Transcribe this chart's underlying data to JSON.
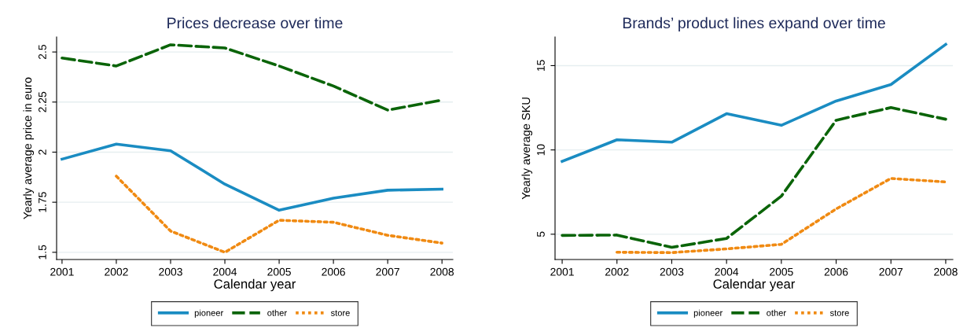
{
  "chart_data": [
    {
      "type": "line",
      "title": "Prices decrease over time",
      "xlabel": "Calendar year",
      "ylabel": "Yearly average price in euro",
      "x": [
        2001,
        2002,
        2003,
        2004,
        2005,
        2006,
        2007,
        2008
      ],
      "series": [
        {
          "name": "pioneer",
          "color": "#1a8cc2",
          "line_style": "solid",
          "values": [
            1.965,
            2.04,
            2.007,
            1.84,
            1.71,
            1.77,
            1.81,
            1.815
          ]
        },
        {
          "name": "other",
          "color": "#0a6408",
          "line_style": "dashed",
          "values": [
            2.47,
            2.43,
            2.536,
            2.52,
            2.43,
            2.33,
            2.21,
            2.26
          ]
        },
        {
          "name": "store",
          "color": "#f08a12",
          "line_style": "dotted",
          "values": [
            null,
            1.88,
            1.606,
            1.5,
            1.66,
            1.65,
            1.585,
            1.546
          ]
        }
      ],
      "xlim": [
        2000.9,
        2008.2
      ],
      "ylim": [
        1.464,
        2.575
      ],
      "xticks": [
        2001,
        2002,
        2003,
        2004,
        2005,
        2006,
        2007,
        2008
      ],
      "yticks": [
        1.5,
        1.75,
        2,
        2.25,
        2.5
      ],
      "grid": "y",
      "legend": "bottom",
      "marker": "none"
    },
    {
      "type": "line",
      "title": "Brands’ product lines expand over time",
      "xlabel": "Calendar year",
      "ylabel": "Yearly average SKU",
      "x": [
        2001,
        2002,
        2003,
        2004,
        2005,
        2006,
        2007,
        2008
      ],
      "series": [
        {
          "name": "pioneer",
          "color": "#1a8cc2",
          "line_style": "solid",
          "values": [
            9.32,
            10.6,
            10.46,
            12.15,
            11.46,
            12.9,
            13.88,
            16.26
          ]
        },
        {
          "name": "other",
          "color": "#0a6408",
          "line_style": "dashed",
          "values": [
            4.93,
            4.95,
            4.22,
            4.75,
            7.26,
            11.76,
            12.51,
            11.82
          ]
        },
        {
          "name": "store",
          "color": "#f08a12",
          "line_style": "dotted",
          "values": [
            null,
            3.93,
            3.91,
            4.13,
            4.4,
            6.5,
            8.31,
            8.1
          ]
        }
      ],
      "xlim": [
        2000.87,
        2008.13
      ],
      "ylim": [
        3.5,
        16.7
      ],
      "xticks": [
        2001,
        2002,
        2003,
        2004,
        2005,
        2006,
        2007,
        2008
      ],
      "yticks": [
        5,
        10,
        15
      ],
      "grid": "y",
      "legend": "bottom",
      "marker": "none"
    }
  ]
}
